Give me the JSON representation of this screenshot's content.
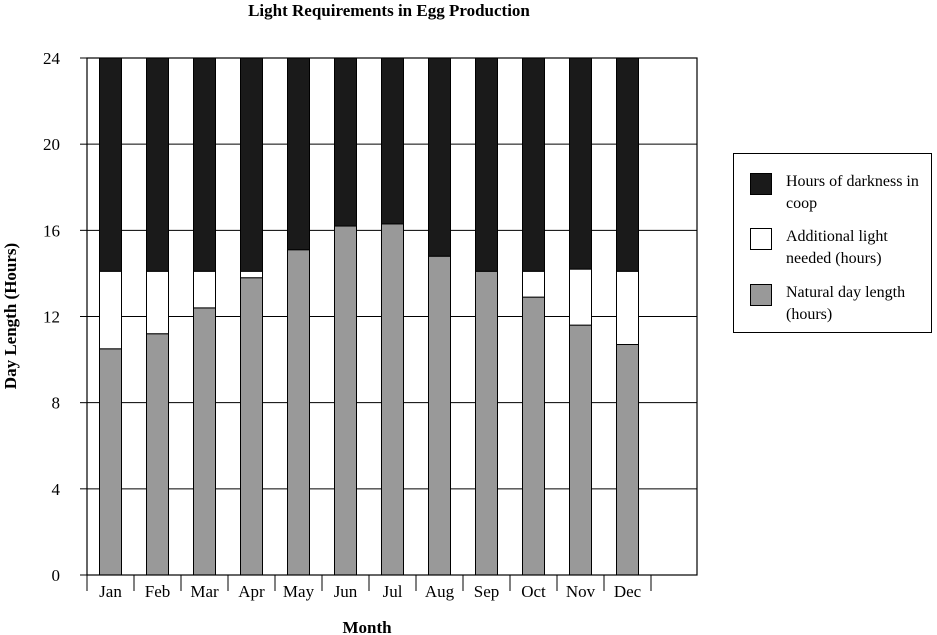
{
  "chart_data": {
    "type": "bar",
    "stacked": true,
    "title": "Light Requirements in Egg Production",
    "xlabel": "Month",
    "ylabel": "Day Length (Hours)",
    "ylim": [
      0,
      24
    ],
    "yticks": [
      "0",
      "4",
      "8",
      "12",
      "16",
      "20",
      "24"
    ],
    "grid": true,
    "legend_position": "right",
    "categories": [
      "Jan",
      "Feb",
      "Mar",
      "Apr",
      "May",
      "Jun",
      "Jul",
      "Aug",
      "Sep",
      "Oct",
      "Nov",
      "Dec"
    ],
    "series": [
      {
        "name": "Natural day length (hours)",
        "color": "#999999",
        "values": [
          10.5,
          11.2,
          12.4,
          13.8,
          15.1,
          16.2,
          16.3,
          14.8,
          14.1,
          12.9,
          11.6,
          10.7
        ]
      },
      {
        "name": "Additional light needed (hours)",
        "color": "#ffffff",
        "values": [
          3.6,
          2.9,
          1.7,
          0.3,
          0,
          0,
          0,
          0,
          0,
          1.2,
          2.6,
          3.4
        ]
      },
      {
        "name": "Hours of darkness in coop",
        "color": "#1a1a1a",
        "values": [
          9.9,
          9.9,
          9.9,
          9.9,
          8.9,
          7.8,
          7.7,
          9.2,
          9.9,
          9.9,
          9.8,
          9.9
        ]
      }
    ]
  },
  "legend": {
    "items": [
      {
        "label": "Hours of darkness in coop",
        "color": "#1a1a1a"
      },
      {
        "label": "Additional light needed (hours)",
        "color": "#ffffff"
      },
      {
        "label": "Natural day length (hours)",
        "color": "#999999"
      }
    ]
  }
}
